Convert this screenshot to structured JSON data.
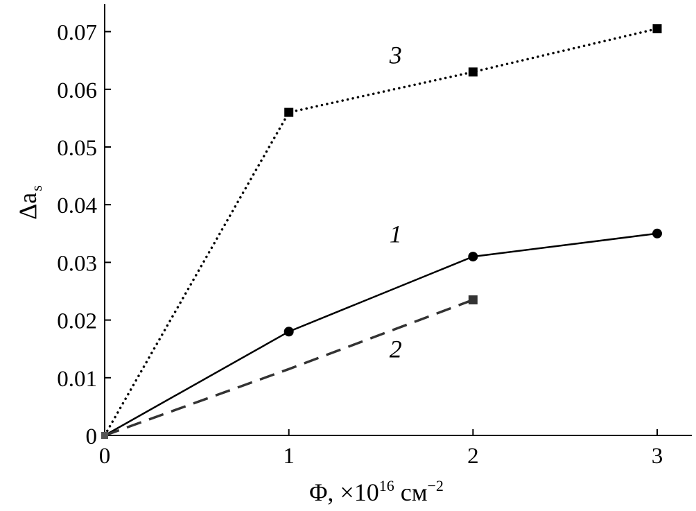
{
  "chart_data": {
    "type": "line",
    "title": "",
    "xlabel": "Φ, ×10",
    "xlabel_sup": "16",
    "xlabel_unit": " см",
    "xlabel_unit_sup": "−2",
    "ylabel_main": "Δa",
    "ylabel_sub": "s",
    "xlim": [
      0,
      3.2
    ],
    "ylim": [
      0,
      0.075
    ],
    "x_ticks": [
      0,
      1,
      2,
      3
    ],
    "x_tick_labels": [
      "0",
      "1",
      "2",
      "3"
    ],
    "y_ticks": [
      0,
      0.01,
      0.02,
      0.03,
      0.04,
      0.05,
      0.06,
      0.07
    ],
    "y_tick_labels": [
      "0",
      "0.01",
      "0.02",
      "0.03",
      "0.04",
      "0.05",
      "0.06",
      "0.07"
    ],
    "grid": false,
    "legend": "none",
    "series": [
      {
        "label": "1",
        "line_style": "solid",
        "marker": "circle",
        "color": "#000000",
        "x": [
          0,
          1,
          2,
          3
        ],
        "y": [
          0,
          0.018,
          0.031,
          0.035
        ],
        "label_pos": [
          1.58,
          0.0335
        ]
      },
      {
        "label": "2",
        "line_style": "dashed",
        "marker": "square",
        "color": "#333333",
        "x": [
          0,
          1,
          2
        ],
        "y": [
          0,
          0.0115,
          0.0235
        ],
        "marker_x": [
          2
        ],
        "marker_y": [
          0.0235
        ],
        "label_pos": [
          1.58,
          0.0135
        ]
      },
      {
        "label": "3",
        "line_style": "dotted",
        "marker": "square",
        "color": "#000000",
        "x": [
          0,
          1,
          2,
          3
        ],
        "y": [
          0,
          0.056,
          0.063,
          0.0705
        ],
        "label_pos": [
          1.58,
          0.0645
        ]
      }
    ]
  }
}
